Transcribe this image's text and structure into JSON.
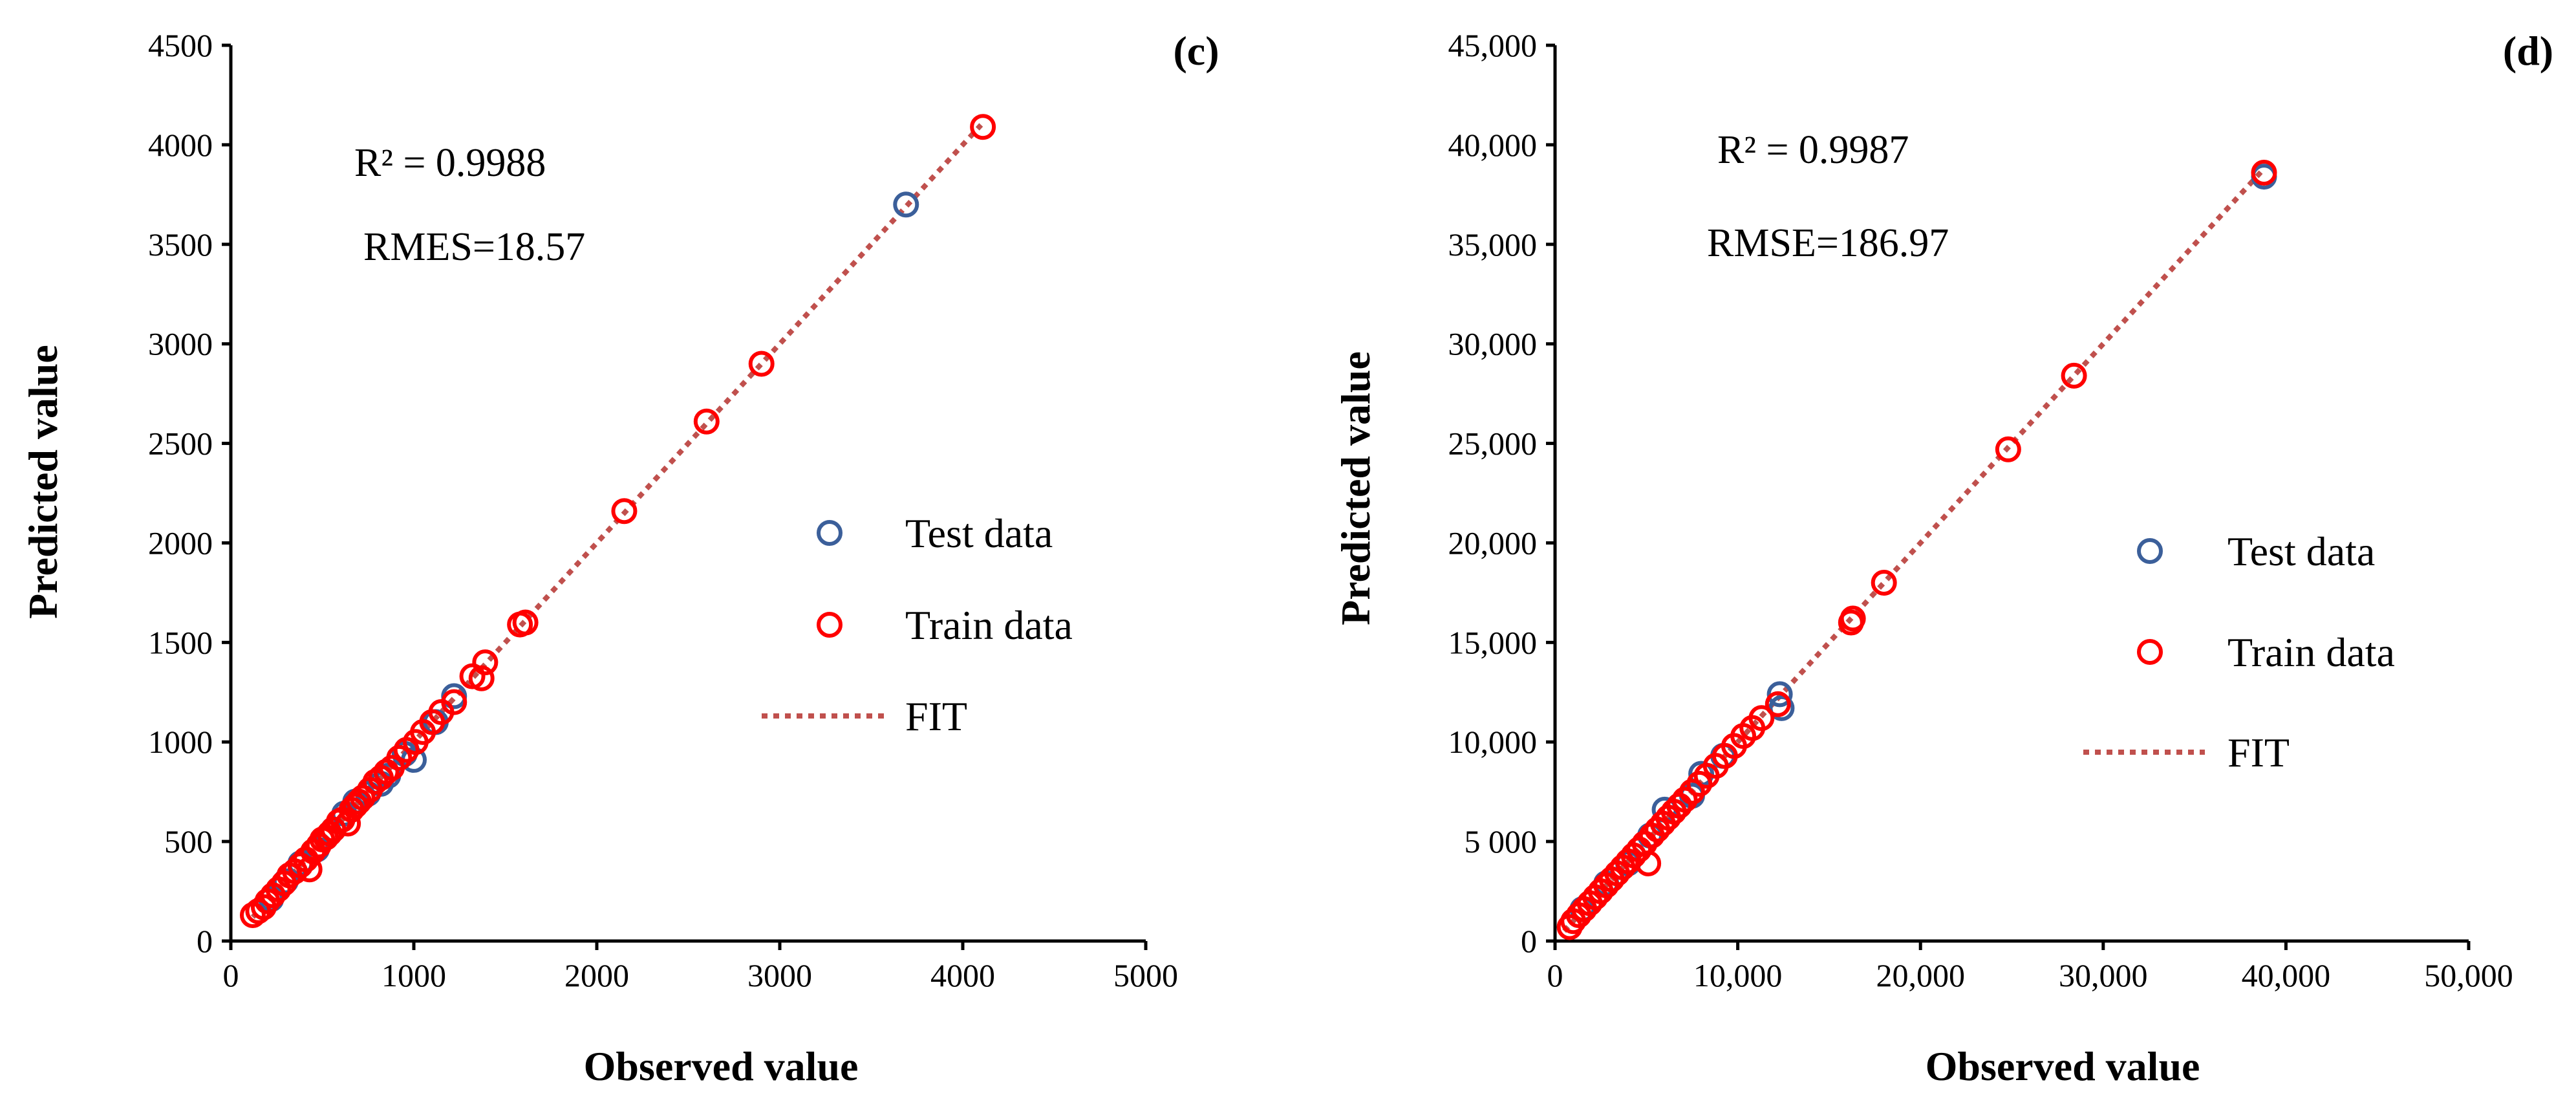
{
  "colors": {
    "test": "#3b5f9a",
    "train": "#ff0000",
    "fit": "#c0504d"
  },
  "chart_data": [
    {
      "type": "scatter",
      "panel_label": "(c)",
      "xlabel": "Observed value",
      "ylabel": "Predicted value",
      "xlim": [
        0,
        5000
      ],
      "ylim": [
        0,
        4500
      ],
      "x_ticks": [
        0,
        1000,
        2000,
        3000,
        4000,
        5000
      ],
      "x_tick_labels": [
        "0",
        "1000",
        "2000",
        "3000",
        "4000",
        "5000"
      ],
      "y_ticks": [
        0,
        500,
        1000,
        1500,
        2000,
        2500,
        3000,
        3500,
        4000,
        4500
      ],
      "y_tick_labels": [
        "0",
        "500",
        "1000",
        "1500",
        "2000",
        "2500",
        "3000",
        "3500",
        "4000",
        "4500"
      ],
      "annotations": {
        "r2": "R² = 0.9988",
        "error": "RMES=18.57"
      },
      "legend": {
        "test": "Test data",
        "train": "Train data",
        "fit": "FIT"
      },
      "fit_line": {
        "x": [
          120,
          4100
        ],
        "y": [
          120,
          4100
        ]
      },
      "series": [
        {
          "name": "Test data",
          "x": [
            220,
            300,
            380,
            470,
            560,
            620,
            680,
            750,
            820,
            860,
            950,
            1000,
            1120,
            1220,
            3690
          ],
          "y": [
            210,
            300,
            390,
            460,
            560,
            640,
            700,
            740,
            790,
            830,
            940,
            910,
            1100,
            1230,
            3700
          ]
        },
        {
          "name": "Train data",
          "x": [
            120,
            150,
            180,
            200,
            230,
            260,
            290,
            320,
            350,
            380,
            410,
            430,
            450,
            480,
            500,
            520,
            540,
            560,
            590,
            610,
            640,
            660,
            680,
            700,
            720,
            760,
            790,
            820,
            850,
            880,
            920,
            960,
            1010,
            1050,
            1100,
            1150,
            1220,
            1320,
            1370,
            1390,
            1580,
            1610,
            2150,
            2600,
            2900,
            4110
          ],
          "y": [
            130,
            150,
            170,
            200,
            230,
            260,
            290,
            330,
            350,
            380,
            410,
            360,
            450,
            480,
            510,
            520,
            540,
            560,
            600,
            610,
            590,
            660,
            680,
            700,
            720,
            760,
            800,
            820,
            850,
            870,
            920,
            960,
            1000,
            1050,
            1100,
            1150,
            1200,
            1330,
            1320,
            1400,
            1590,
            1600,
            2160,
            2610,
            2900,
            4090
          ]
        }
      ]
    },
    {
      "type": "scatter",
      "panel_label": "(d)",
      "xlabel": "Observed value",
      "ylabel": "Predicted value",
      "xlim": [
        0,
        50000
      ],
      "ylim": [
        0,
        45000
      ],
      "x_ticks": [
        0,
        10000,
        20000,
        30000,
        40000,
        50000
      ],
      "x_tick_labels": [
        "0",
        "10,000",
        "20,000",
        "30,000",
        "40,000",
        "50,000"
      ],
      "y_ticks": [
        0,
        5000,
        10000,
        15000,
        20000,
        25000,
        30000,
        35000,
        40000,
        45000
      ],
      "y_tick_labels": [
        "0",
        "5 000",
        "10,000",
        "15,000",
        "20,000",
        "25,000",
        "30,000",
        "35,000",
        "40,000",
        "45,000"
      ],
      "annotations": {
        "r2": "R² = 0.9987",
        "error": "RMSE=186.97"
      },
      "legend": {
        "test": "Test data",
        "train": "Train data",
        "fit": "FIT"
      },
      "fit_line": {
        "x": [
          500,
          38800
        ],
        "y": [
          500,
          38800
        ]
      },
      "series": [
        {
          "name": "Test data",
          "x": [
            1500,
            2800,
            4000,
            5200,
            6000,
            6800,
            7500,
            8000,
            9200,
            12300,
            12400,
            38800
          ],
          "y": [
            1600,
            2900,
            3900,
            5300,
            6600,
            6800,
            7300,
            8400,
            9300,
            12400,
            11700,
            38400
          ]
        },
        {
          "name": "Train data",
          "x": [
            800,
            1000,
            1300,
            1600,
            1900,
            2200,
            2500,
            2800,
            3100,
            3400,
            3700,
            4000,
            4300,
            4600,
            4900,
            5100,
            5300,
            5600,
            5900,
            6200,
            6500,
            6800,
            7100,
            7500,
            7900,
            8300,
            8800,
            9300,
            9800,
            10300,
            10800,
            11300,
            12200,
            16200,
            16300,
            18000,
            24800,
            28400,
            38800
          ],
          "y": [
            700,
            1000,
            1300,
            1600,
            1900,
            2200,
            2500,
            2800,
            3100,
            3400,
            3700,
            4000,
            4300,
            4600,
            4900,
            3900,
            5300,
            5600,
            5900,
            6200,
            6500,
            6800,
            7100,
            7500,
            7900,
            8300,
            8800,
            9300,
            9800,
            10300,
            10700,
            11200,
            11900,
            16000,
            16200,
            18000,
            24700,
            28400,
            38600
          ]
        }
      ]
    }
  ]
}
